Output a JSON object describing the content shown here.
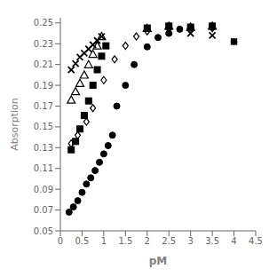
{
  "chart_data": {
    "type": "scatter",
    "title": "",
    "xlabel": "pM",
    "ylabel": "Absorption",
    "xlim": [
      0,
      4.5
    ],
    "ylim": [
      0.05,
      0.255
    ],
    "xticks": [
      0,
      0.5,
      1,
      1.5,
      2,
      2.5,
      3,
      3.5,
      4,
      4.5
    ],
    "yticks": [
      0.05,
      0.07,
      0.09,
      0.11,
      0.13,
      0.15,
      0.17,
      0.19,
      0.21,
      0.23,
      0.25
    ],
    "grid": false,
    "series": [
      {
        "color": "#000000",
        "marker": "circle",
        "x": [
          0.2,
          0.3,
          0.4,
          0.5,
          0.6,
          0.7,
          0.8,
          0.9,
          1.0,
          1.1,
          1.2,
          1.3,
          1.5,
          1.7,
          2.0,
          2.25,
          2.5,
          2.75,
          3.0,
          3.5,
          4.0
        ],
        "values": [
          0.068,
          0.073,
          0.079,
          0.087,
          0.095,
          0.101,
          0.108,
          0.116,
          0.124,
          0.132,
          0.142,
          0.17,
          0.19,
          0.21,
          0.227,
          0.236,
          0.24,
          0.244,
          0.245,
          0.246,
          0.232
        ]
      },
      {
        "color": "#000000",
        "marker": "open_diamond",
        "x": [
          0.25,
          0.4,
          0.6,
          0.75,
          1.0,
          1.25,
          1.5,
          1.75,
          2.0,
          2.5,
          3.0,
          3.5
        ],
        "values": [
          0.134,
          0.142,
          0.155,
          0.168,
          0.195,
          0.215,
          0.228,
          0.237,
          0.242,
          0.245,
          0.246,
          0.245
        ]
      },
      {
        "color": "#000000",
        "marker": "square",
        "x": [
          0.25,
          0.35,
          0.45,
          0.55,
          0.65,
          0.75,
          0.85,
          0.95,
          1.05,
          2.0,
          2.5,
          3.0,
          3.5
        ],
        "values": [
          0.128,
          0.136,
          0.148,
          0.161,
          0.175,
          0.19,
          0.205,
          0.218,
          0.228,
          0.245,
          0.247,
          0.246,
          0.247
        ]
      },
      {
        "color": "#000000",
        "marker": "open_triangle",
        "x": [
          0.25,
          0.35,
          0.45,
          0.55,
          0.65,
          0.75,
          0.85,
          0.95,
          2.0,
          2.5,
          3.0,
          3.5
        ],
        "values": [
          0.176,
          0.184,
          0.192,
          0.2,
          0.21,
          0.22,
          0.228,
          0.237,
          0.245,
          0.247,
          0.246,
          0.247
        ]
      },
      {
        "color": "#000000",
        "marker": "x",
        "x": [
          0.25,
          0.35,
          0.45,
          0.55,
          0.65,
          0.75,
          0.85,
          0.95,
          2.0,
          2.5,
          3.0,
          3.5,
          4.0
        ],
        "values": [
          0.205,
          0.211,
          0.217,
          0.221,
          0.225,
          0.229,
          0.233,
          0.237,
          0.245,
          0.242,
          0.24,
          0.238,
          0.232
        ]
      }
    ]
  }
}
